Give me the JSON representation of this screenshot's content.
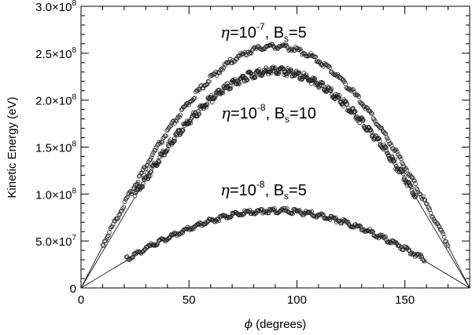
{
  "chart_data": {
    "type": "scatter",
    "xlabel": {
      "symbol": "ϕ",
      "text": " (degrees)"
    },
    "ylabel": "Kinetic Energy (eV)",
    "xlim": [
      0,
      180
    ],
    "ylim": [
      0,
      300000000
    ],
    "x_ticks": [
      {
        "value": 0,
        "label": "0"
      },
      {
        "value": 50,
        "label": "50"
      },
      {
        "value": 100,
        "label": "100"
      },
      {
        "value": 150,
        "label": "150"
      }
    ],
    "y_ticks": [
      {
        "value": 0,
        "label": "0"
      },
      {
        "value": 50000000,
        "mantissa": "5.0×10",
        "exp": "7"
      },
      {
        "value": 100000000,
        "mantissa": "1.0×10",
        "exp": "8"
      },
      {
        "value": 150000000,
        "mantissa": "1.5×10",
        "exp": "8"
      },
      {
        "value": 200000000,
        "mantissa": "2.0×10",
        "exp": "8"
      },
      {
        "value": 250000000,
        "mantissa": "2.5×10",
        "exp": "8"
      },
      {
        "value": 300000000,
        "mantissa": "3.0×10",
        "exp": "8"
      }
    ],
    "grid": false,
    "marker": "open-circle",
    "series": [
      {
        "annotation": {
          "eta_exp": "-7",
          "Bs": "5"
        },
        "peak_x": 90,
        "peak_y": 256000000,
        "x_range": [
          10,
          170
        ],
        "end_y": 46000000
      },
      {
        "annotation": {
          "eta_exp": "-8",
          "Bs": "10"
        },
        "peak_x": 90,
        "peak_y": 229000000,
        "x_range": [
          25,
          155
        ],
        "end_y": 97000000
      },
      {
        "annotation": {
          "eta_exp": "-8",
          "Bs": "5"
        },
        "peak_x": 90,
        "peak_y": 81000000,
        "x_range": [
          21,
          159
        ],
        "end_y": 30000000
      }
    ]
  },
  "annotations": [
    {
      "eta": "η",
      "eq": "=10",
      "exp": "-7",
      "rest": ", B",
      "sub": "s",
      "val": "=5"
    },
    {
      "eta": "η",
      "eq": "=10",
      "exp": "-8",
      "rest": ", B",
      "sub": "s",
      "val": "=10"
    },
    {
      "eta": "η",
      "eq": "=10",
      "exp": "-8",
      "rest": ", B",
      "sub": "s",
      "val": "=5"
    }
  ]
}
